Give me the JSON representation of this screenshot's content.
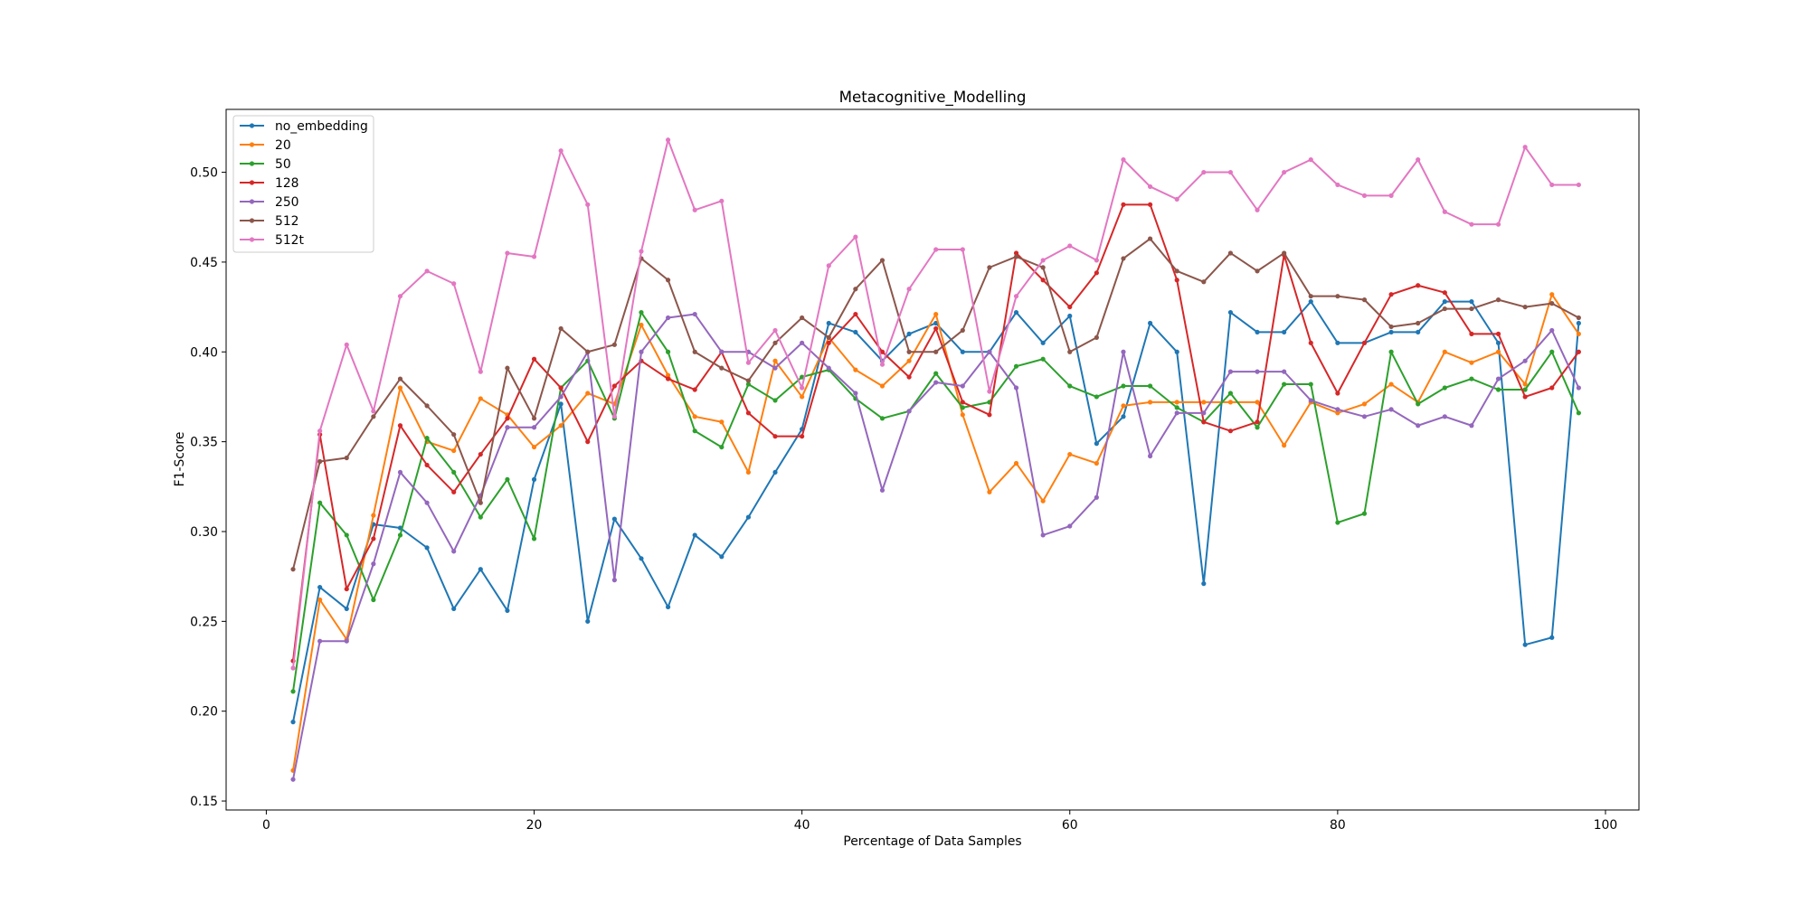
{
  "chart_data": {
    "type": "line",
    "title": "Metacognitive_Modelling",
    "xlabel": "Percentage of Data Samples",
    "ylabel": "F1-Score",
    "xlim": [
      -3,
      102.5
    ],
    "ylim": [
      0.145,
      0.535
    ],
    "xticks": [
      0,
      20,
      40,
      60,
      80,
      100
    ],
    "yticks": [
      0.15,
      0.2,
      0.25,
      0.3,
      0.35,
      0.4,
      0.45,
      0.5
    ],
    "xtick_labels": [
      "0",
      "20",
      "40",
      "60",
      "80",
      "100"
    ],
    "ytick_labels": [
      "0.15",
      "0.20",
      "0.25",
      "0.30",
      "0.35",
      "0.40",
      "0.45",
      "0.50"
    ],
    "legend_position": "top-left",
    "grid": false,
    "x": [
      2,
      4,
      6,
      8,
      10,
      12,
      14,
      16,
      18,
      20,
      22,
      24,
      26,
      28,
      30,
      32,
      34,
      36,
      38,
      40,
      42,
      44,
      46,
      48,
      50,
      52,
      54,
      56,
      58,
      60,
      62,
      64,
      66,
      68,
      70,
      72,
      74,
      76,
      78,
      80,
      82,
      84,
      86,
      88,
      90,
      92,
      94,
      96,
      98
    ],
    "series": [
      {
        "name": "no_embedding",
        "color": "#1f77b4",
        "values": [
          0.194,
          0.269,
          0.257,
          0.304,
          0.302,
          0.291,
          0.257,
          0.279,
          0.256,
          0.329,
          0.371,
          0.25,
          0.307,
          0.285,
          0.258,
          0.298,
          0.286,
          0.308,
          0.333,
          0.357,
          0.416,
          0.411,
          0.395,
          0.41,
          0.416,
          0.4,
          0.4,
          0.422,
          0.405,
          0.42,
          0.349,
          0.364,
          0.416,
          0.4,
          0.271,
          0.422,
          0.411,
          0.411,
          0.428,
          0.405,
          0.405,
          0.411,
          0.411,
          0.428,
          0.428,
          0.405,
          0.237,
          0.241,
          0.416
        ]
      },
      {
        "name": "20",
        "color": "#ff7f0e",
        "values": [
          0.167,
          0.262,
          0.24,
          0.309,
          0.38,
          0.35,
          0.345,
          0.374,
          0.365,
          0.347,
          0.359,
          0.377,
          0.371,
          0.415,
          0.387,
          0.364,
          0.361,
          0.333,
          0.395,
          0.375,
          0.408,
          0.39,
          0.381,
          0.395,
          0.421,
          0.365,
          0.322,
          0.338,
          0.317,
          0.343,
          0.338,
          0.37,
          0.372,
          0.372,
          0.372,
          0.372,
          0.372,
          0.348,
          0.372,
          0.366,
          0.371,
          0.382,
          0.372,
          0.4,
          0.394,
          0.4,
          0.382,
          0.432,
          0.41
        ]
      },
      {
        "name": "50",
        "color": "#2ca02c",
        "values": [
          0.211,
          0.316,
          0.298,
          0.262,
          0.298,
          0.352,
          0.333,
          0.308,
          0.329,
          0.296,
          0.38,
          0.395,
          0.363,
          0.422,
          0.4,
          0.356,
          0.347,
          0.382,
          0.373,
          0.386,
          0.39,
          0.374,
          0.363,
          0.367,
          0.388,
          0.369,
          0.372,
          0.392,
          0.396,
          0.381,
          0.375,
          0.381,
          0.381,
          0.369,
          0.361,
          0.377,
          0.358,
          0.382,
          0.382,
          0.305,
          0.31,
          0.4,
          0.371,
          0.38,
          0.385,
          0.379,
          0.379,
          0.4,
          0.366
        ]
      },
      {
        "name": "128",
        "color": "#d62728",
        "values": [
          0.228,
          0.354,
          0.268,
          0.296,
          0.359,
          0.337,
          0.322,
          0.343,
          0.363,
          0.396,
          0.38,
          0.35,
          0.381,
          0.395,
          0.385,
          0.379,
          0.4,
          0.366,
          0.353,
          0.353,
          0.405,
          0.421,
          0.4,
          0.386,
          0.413,
          0.372,
          0.365,
          0.455,
          0.44,
          0.425,
          0.444,
          0.482,
          0.482,
          0.44,
          0.361,
          0.356,
          0.361,
          0.454,
          0.405,
          0.377,
          0.405,
          0.432,
          0.437,
          0.433,
          0.41,
          0.41,
          0.375,
          0.38,
          0.4
        ]
      },
      {
        "name": "250",
        "color": "#9467bd",
        "values": [
          0.162,
          0.239,
          0.239,
          0.282,
          0.333,
          0.316,
          0.289,
          0.32,
          0.358,
          0.358,
          0.375,
          0.4,
          0.273,
          0.4,
          0.419,
          0.421,
          0.4,
          0.4,
          0.391,
          0.405,
          0.391,
          0.377,
          0.323,
          0.367,
          0.383,
          0.381,
          0.4,
          0.38,
          0.298,
          0.303,
          0.319,
          0.4,
          0.342,
          0.366,
          0.366,
          0.389,
          0.389,
          0.389,
          0.373,
          0.368,
          0.364,
          0.368,
          0.359,
          0.364,
          0.359,
          0.385,
          0.395,
          0.412,
          0.38
        ]
      },
      {
        "name": "512",
        "color": "#8c564b",
        "values": [
          0.279,
          0.339,
          0.341,
          0.364,
          0.385,
          0.37,
          0.354,
          0.316,
          0.391,
          0.363,
          0.413,
          0.4,
          0.404,
          0.452,
          0.44,
          0.4,
          0.391,
          0.384,
          0.405,
          0.419,
          0.408,
          0.435,
          0.451,
          0.4,
          0.4,
          0.412,
          0.447,
          0.453,
          0.447,
          0.4,
          0.408,
          0.452,
          0.463,
          0.445,
          0.439,
          0.455,
          0.445,
          0.455,
          0.431,
          0.431,
          0.429,
          0.414,
          0.416,
          0.424,
          0.424,
          0.429,
          0.425,
          0.427,
          0.419
        ]
      },
      {
        "name": "512t",
        "color": "#e377c2",
        "values": [
          0.224,
          0.356,
          0.404,
          0.367,
          0.431,
          0.445,
          0.438,
          0.389,
          0.455,
          0.453,
          0.512,
          0.482,
          0.364,
          0.456,
          0.518,
          0.479,
          0.484,
          0.394,
          0.412,
          0.38,
          0.448,
          0.464,
          0.393,
          0.435,
          0.457,
          0.457,
          0.378,
          0.431,
          0.451,
          0.459,
          0.451,
          0.507,
          0.492,
          0.485,
          0.5,
          0.5,
          0.479,
          0.5,
          0.507,
          0.493,
          0.487,
          0.487,
          0.507,
          0.478,
          0.471,
          0.471,
          0.514,
          0.493,
          0.493
        ]
      }
    ]
  }
}
